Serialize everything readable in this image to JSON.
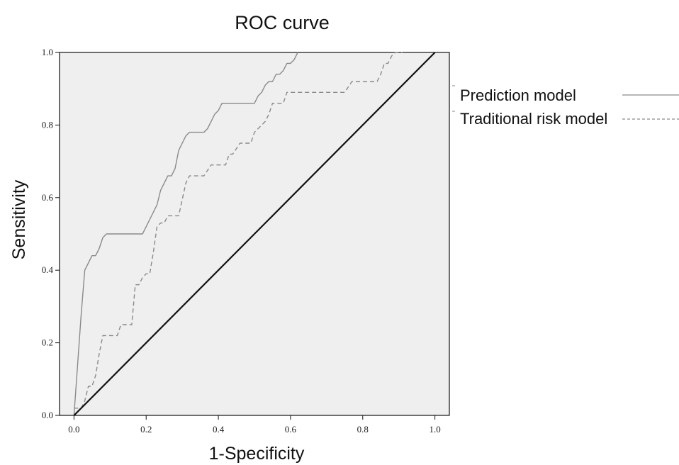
{
  "chart_data": {
    "type": "line",
    "title": "ROC curve",
    "xlabel": "1-Specificity",
    "ylabel": "Sensitivity",
    "xlim": [
      -0.04,
      1.04
    ],
    "ylim": [
      0.0,
      1.0
    ],
    "x_ticks": [
      "0.0",
      "0.2",
      "0.4",
      "0.6",
      "0.8",
      "1.0"
    ],
    "y_ticks": [
      "0.0",
      "0.2",
      "0.4",
      "0.6",
      "0.8",
      "1.0"
    ],
    "grid": false,
    "plot_background": "#efefef",
    "legend_position": "right",
    "series": [
      {
        "name": "Prediction model",
        "color": "#8a8a8a",
        "dash": "solid",
        "x": [
          0.0,
          0.01,
          0.02,
          0.03,
          0.04,
          0.05,
          0.06,
          0.07,
          0.08,
          0.09,
          0.19,
          0.2,
          0.21,
          0.22,
          0.23,
          0.24,
          0.25,
          0.26,
          0.27,
          0.28,
          0.29,
          0.3,
          0.31,
          0.32,
          0.33,
          0.34,
          0.35,
          0.36,
          0.37,
          0.38,
          0.39,
          0.4,
          0.41,
          0.42,
          0.43,
          0.44,
          0.45,
          0.46,
          0.5,
          0.51,
          0.52,
          0.53,
          0.54,
          0.55,
          0.56,
          0.57,
          0.58,
          0.59,
          0.6,
          0.61,
          0.62
        ],
        "y": [
          0.0,
          0.14,
          0.28,
          0.4,
          0.42,
          0.44,
          0.44,
          0.46,
          0.49,
          0.5,
          0.5,
          0.52,
          0.54,
          0.56,
          0.58,
          0.62,
          0.64,
          0.66,
          0.66,
          0.68,
          0.73,
          0.75,
          0.77,
          0.78,
          0.78,
          0.78,
          0.78,
          0.78,
          0.79,
          0.81,
          0.83,
          0.84,
          0.86,
          0.86,
          0.86,
          0.86,
          0.86,
          0.86,
          0.86,
          0.88,
          0.89,
          0.91,
          0.92,
          0.92,
          0.94,
          0.94,
          0.95,
          0.97,
          0.97,
          0.98,
          1.0
        ]
      },
      {
        "name": "Traditional risk model",
        "color": "#8a8a8a",
        "dash": "dashed",
        "x": [
          0.0,
          0.02,
          0.03,
          0.04,
          0.05,
          0.06,
          0.07,
          0.08,
          0.09,
          0.11,
          0.12,
          0.13,
          0.14,
          0.16,
          0.17,
          0.18,
          0.19,
          0.2,
          0.21,
          0.22,
          0.23,
          0.24,
          0.25,
          0.26,
          0.27,
          0.28,
          0.29,
          0.31,
          0.32,
          0.33,
          0.34,
          0.35,
          0.36,
          0.38,
          0.4,
          0.41,
          0.42,
          0.43,
          0.44,
          0.46,
          0.47,
          0.48,
          0.49,
          0.5,
          0.52,
          0.53,
          0.54,
          0.55,
          0.56,
          0.57,
          0.58,
          0.59,
          0.6,
          0.61,
          0.62,
          0.63,
          0.64,
          0.66,
          0.7,
          0.75,
          0.77,
          0.78,
          0.79,
          0.8,
          0.81,
          0.82,
          0.84,
          0.85,
          0.86,
          0.87,
          0.88,
          0.89,
          0.9,
          0.91
        ],
        "y": [
          0.02,
          0.02,
          0.04,
          0.08,
          0.08,
          0.11,
          0.17,
          0.22,
          0.22,
          0.22,
          0.22,
          0.25,
          0.25,
          0.25,
          0.36,
          0.36,
          0.38,
          0.39,
          0.39,
          0.45,
          0.52,
          0.53,
          0.53,
          0.55,
          0.55,
          0.55,
          0.55,
          0.64,
          0.66,
          0.66,
          0.66,
          0.66,
          0.66,
          0.69,
          0.69,
          0.69,
          0.69,
          0.72,
          0.72,
          0.75,
          0.75,
          0.75,
          0.75,
          0.78,
          0.8,
          0.81,
          0.83,
          0.86,
          0.86,
          0.86,
          0.86,
          0.89,
          0.89,
          0.89,
          0.89,
          0.89,
          0.89,
          0.89,
          0.89,
          0.89,
          0.92,
          0.92,
          0.92,
          0.92,
          0.92,
          0.92,
          0.92,
          0.94,
          0.97,
          0.97,
          0.99,
          1.0,
          1.0,
          1.0
        ]
      },
      {
        "color": "#111111",
        "dash": "solid",
        "x": [
          0.0,
          1.0
        ],
        "y": [
          0.0,
          1.0
        ]
      }
    ]
  }
}
